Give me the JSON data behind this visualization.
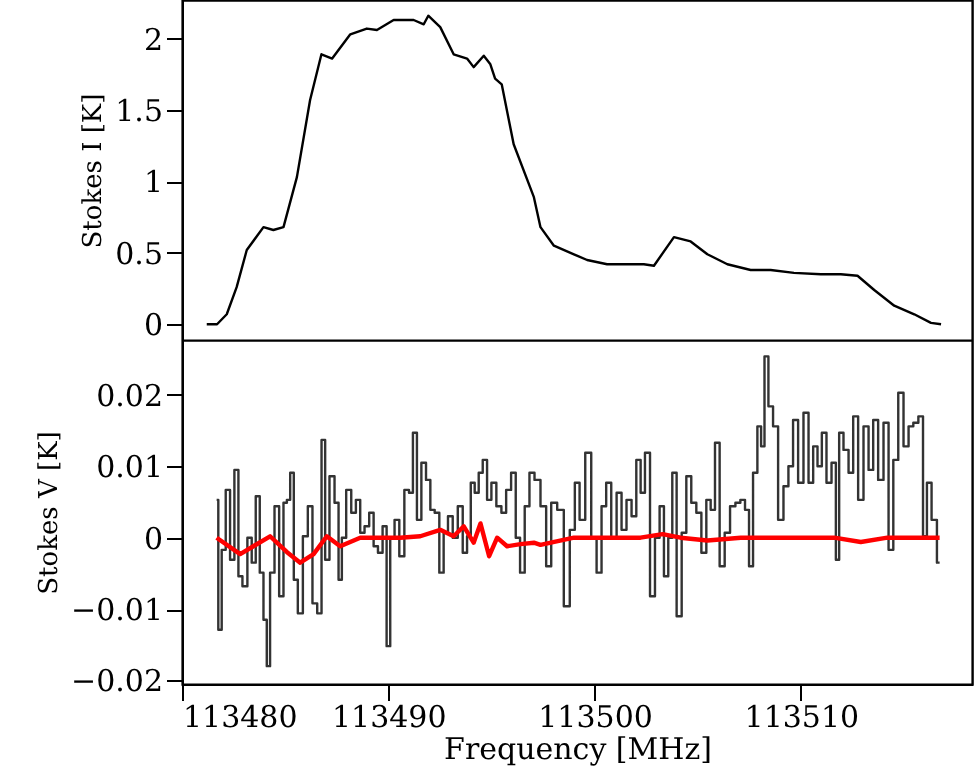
{
  "chart_data": [
    {
      "type": "line",
      "ylabel": "Stokes I [K]",
      "xlim": [
        113480,
        113518.3
      ],
      "xticks": [
        113480,
        113490,
        113500,
        113510
      ],
      "ylim": [
        -0.11,
        2.27
      ],
      "yticks": [
        0,
        0.5,
        1,
        1.5,
        2
      ],
      "tick_labels": "y",
      "grid": false,
      "series": [
        {
          "color": "#000000",
          "x": [
            113481.2,
            113481.7,
            113482.17,
            113482.65,
            113483.14,
            113483.95,
            113484.43,
            113484.92,
            113485.57,
            113486.21,
            113486.76,
            113487.28,
            113488.16,
            113488.96,
            113489.45,
            113490.26,
            113491.23,
            113491.72,
            113491.94,
            113492.52,
            113493.17,
            113493.82,
            113494.14,
            113494.63,
            113494.95,
            113495.18,
            113495.5,
            113496.08,
            113497.06,
            113497.38,
            113498.03,
            113499.0,
            113499.64,
            113500.61,
            113501.58,
            113502.39,
            113502.88,
            113503.85,
            113504.66,
            113505.47,
            113506.44,
            113507.57,
            113508.54,
            113509.67,
            113510.97,
            113511.94,
            113512.75,
            113513.56,
            113514.53,
            113515.5,
            113516.31,
            113516.8
          ],
          "values": [
            0,
            0,
            0.07,
            0.26,
            0.52,
            0.68,
            0.66,
            0.68,
            1.03,
            1.57,
            1.89,
            1.86,
            2.03,
            2.07,
            2.06,
            2.13,
            2.13,
            2.1,
            2.16,
            2.08,
            1.89,
            1.86,
            1.8,
            1.88,
            1.82,
            1.72,
            1.68,
            1.26,
            0.89,
            0.68,
            0.55,
            0.49,
            0.45,
            0.42,
            0.42,
            0.42,
            0.41,
            0.61,
            0.58,
            0.49,
            0.42,
            0.38,
            0.38,
            0.36,
            0.35,
            0.35,
            0.34,
            0.24,
            0.13,
            0.07,
            0.01,
            0
          ]
        }
      ]
    },
    {
      "type": "line",
      "xlabel": "Frequency [MHz]",
      "ylabel": "Stokes V [K]",
      "xlim": [
        113480,
        113518.3
      ],
      "xticks": [
        113480,
        113490,
        113500,
        113510
      ],
      "ylim": [
        -0.0205,
        0.0277
      ],
      "yticks": [
        -0.02,
        -0.01,
        0,
        0.01,
        0.02
      ],
      "grid": false,
      "series": [
        {
          "type": "step",
          "color": "#333333",
          "x": [
            113481.68,
            113481.84,
            113482.01,
            113482.23,
            113482.43,
            113482.65,
            113482.82,
            113483.04,
            113483.3,
            113483.46,
            113483.69,
            113483.85,
            113484.05,
            113484.17,
            113484.37,
            113484.6,
            113484.82,
            113485.02,
            113485.15,
            113485.34,
            113485.5,
            113485.73,
            113485.99,
            113486.21,
            113486.44,
            113486.67,
            113486.86,
            113487.02,
            113487.28,
            113487.51,
            113487.67,
            113487.83,
            113488.09,
            113488.32,
            113488.54,
            113488.74,
            113488.96,
            113489.19,
            113489.39,
            113489.61,
            113489.84,
            113490.0,
            113490.19,
            113490.42,
            113490.65,
            113490.91,
            113491.1,
            113491.29,
            113491.49,
            113491.72,
            113491.94,
            113492.14,
            113492.36,
            113492.59,
            113492.78,
            113493.01,
            113493.24,
            113493.5,
            113493.72,
            113493.92,
            113494.08,
            113494.3,
            113494.47,
            113494.69,
            113494.89,
            113495.11,
            113495.37,
            113495.6,
            113495.83,
            113496.08,
            113496.28,
            113496.5,
            113496.73,
            113496.96,
            113497.22,
            113497.54,
            113497.77,
            113498.03,
            113498.35,
            113498.67,
            113498.93,
            113499.16,
            113499.39,
            113499.71,
            113499.97,
            113500.23,
            113500.45,
            113500.68,
            113500.94,
            113501.2,
            113501.42,
            113501.68,
            113501.91,
            113502.14,
            113502.33,
            113502.56,
            113502.82,
            113503.04,
            113503.27,
            113503.46,
            113503.69,
            113503.85,
            113504.11,
            113504.34,
            113504.56,
            113504.82,
            113505.05,
            113505.31,
            113505.53,
            113505.73,
            113505.95,
            113506.18,
            113506.44,
            113506.7,
            113506.96,
            113507.18,
            113507.41,
            113507.57,
            113507.8,
            113507.99,
            113508.16,
            113508.32,
            113508.54,
            113508.77,
            113509.03,
            113509.29,
            113509.51,
            113509.74,
            113510.0,
            113510.26,
            113510.49,
            113510.71,
            113510.91,
            113511.13,
            113511.36,
            113511.62,
            113511.78,
            113511.94,
            113512.2,
            113512.43,
            113512.65,
            113512.91,
            113513.17,
            113513.4,
            113513.62,
            113513.88,
            113514.14,
            113514.37,
            113514.6,
            113514.85,
            113515.11,
            113515.34,
            113515.57,
            113515.83,
            113516.02,
            113516.21,
            113516.47,
            113516.73
          ],
          "values": [
            0.0053,
            -0.0129,
            -0.0017,
            0.0067,
            -0.0031,
            0.0095,
            -0.0054,
            -0.0068,
            0,
            -0.0035,
            0.0058,
            -0.0049,
            -0.0115,
            -0.018,
            -0.0049,
            0.0044,
            -0.0082,
            0.0049,
            0.0053,
            0.0091,
            -0.0059,
            -0.0106,
            0.0002,
            0.0044,
            -0.0092,
            -0.0106,
            0.0137,
            -0.0031,
            0.0086,
            0.0049,
            -0.0059,
            0,
            0.0067,
            0.0035,
            0.0053,
            0.0007,
            0.0016,
            0.0035,
            -0.0012,
            -0.0021,
            0.0016,
            -0.0152,
            0,
            0.0025,
            -0.0026,
            0.0067,
            0.0063,
            0.0147,
            0.0025,
            0.0105,
            0.0081,
            0.0039,
            0.0035,
            -0.0049,
            0.0007,
            0.003,
            0,
            0.0044,
            -0.0021,
            0.0002,
            0.0077,
            0.0063,
            0.0091,
            0.0109,
            0.0053,
            0.0077,
            0.0044,
            0.0035,
            0.0067,
            0.0091,
            0,
            -0.0049,
            0.0044,
            0.0091,
            0.0081,
            0.0044,
            -0.004,
            0.0049,
            0.0039,
            -0.0096,
            0.0011,
            0.0077,
            0.0025,
            0.0119,
            0,
            -0.0049,
            0.0044,
            0.0077,
            0,
            0.0063,
            0.0011,
            0.0053,
            0.003,
            0.0109,
            0.0063,
            0.0119,
            -0.0082,
            0,
            0.0044,
            -0.0054,
            0,
            0.0091,
            -0.011,
            0.0007,
            0.0086,
            0.0049,
            0.0035,
            -0.0021,
            0.0053,
            0.0039,
            0.0133,
            -0.004,
            0.0007,
            0.0044,
            0.0049,
            0.0053,
            0.0039,
            -0.004,
            0.0091,
            0.0156,
            0.0128,
            0.0254,
            0.0184,
            0.0156,
            0.0025,
            0.0072,
            0.01,
            0.0165,
            0.0077,
            0.0175,
            0.0077,
            0.0128,
            0.01,
            0.0147,
            0.0077,
            0.0105,
            -0.0031,
            0.0147,
            0.0123,
            0.0091,
            0.017,
            0.0053,
            0.0156,
            0.0095,
            0.0165,
            0.0081,
            0.0161,
            -0.0017,
            0.0109,
            0.0203,
            0.0128,
            0.0156,
            0.0161,
            0.017,
            0.0002,
            0.0077,
            0.0025,
            -0.0035
          ]
        },
        {
          "color": "#ff0000",
          "x": [
            113481.68,
            113482.82,
            113483.46,
            113484.27,
            113485.08,
            113485.73,
            113486.38,
            113487.02,
            113487.67,
            113488.64,
            113489.61,
            113490.58,
            113491.55,
            113492.52,
            113493.17,
            113493.66,
            113494.14,
            113494.47,
            113494.89,
            113495.28,
            113495.76,
            113496.41,
            113497.06,
            113497.38,
            113499.0,
            113500.61,
            113502.23,
            113503.3,
            113504.17,
            113505.47,
            113507.09,
            113508.71,
            113510.32,
            113511.62,
            113512.91,
            113514.2,
            113515.5,
            113516.73
          ],
          "values": [
            0,
            -0.0023,
            -0.0012,
            0.0002,
            -0.002,
            -0.0035,
            -0.0023,
            0.0002,
            -0.0012,
            0,
            0,
            0,
            0.0002,
            0.0011,
            0.0002,
            0.0016,
            -0.0007,
            0.002,
            -0.0026,
            0,
            -0.0012,
            -0.0009,
            -0.0007,
            -0.001,
            0,
            0,
            0,
            0.0005,
            0,
            -0.0004,
            0,
            0,
            0,
            0,
            -0.0006,
            0,
            0,
            0
          ]
        }
      ]
    }
  ]
}
